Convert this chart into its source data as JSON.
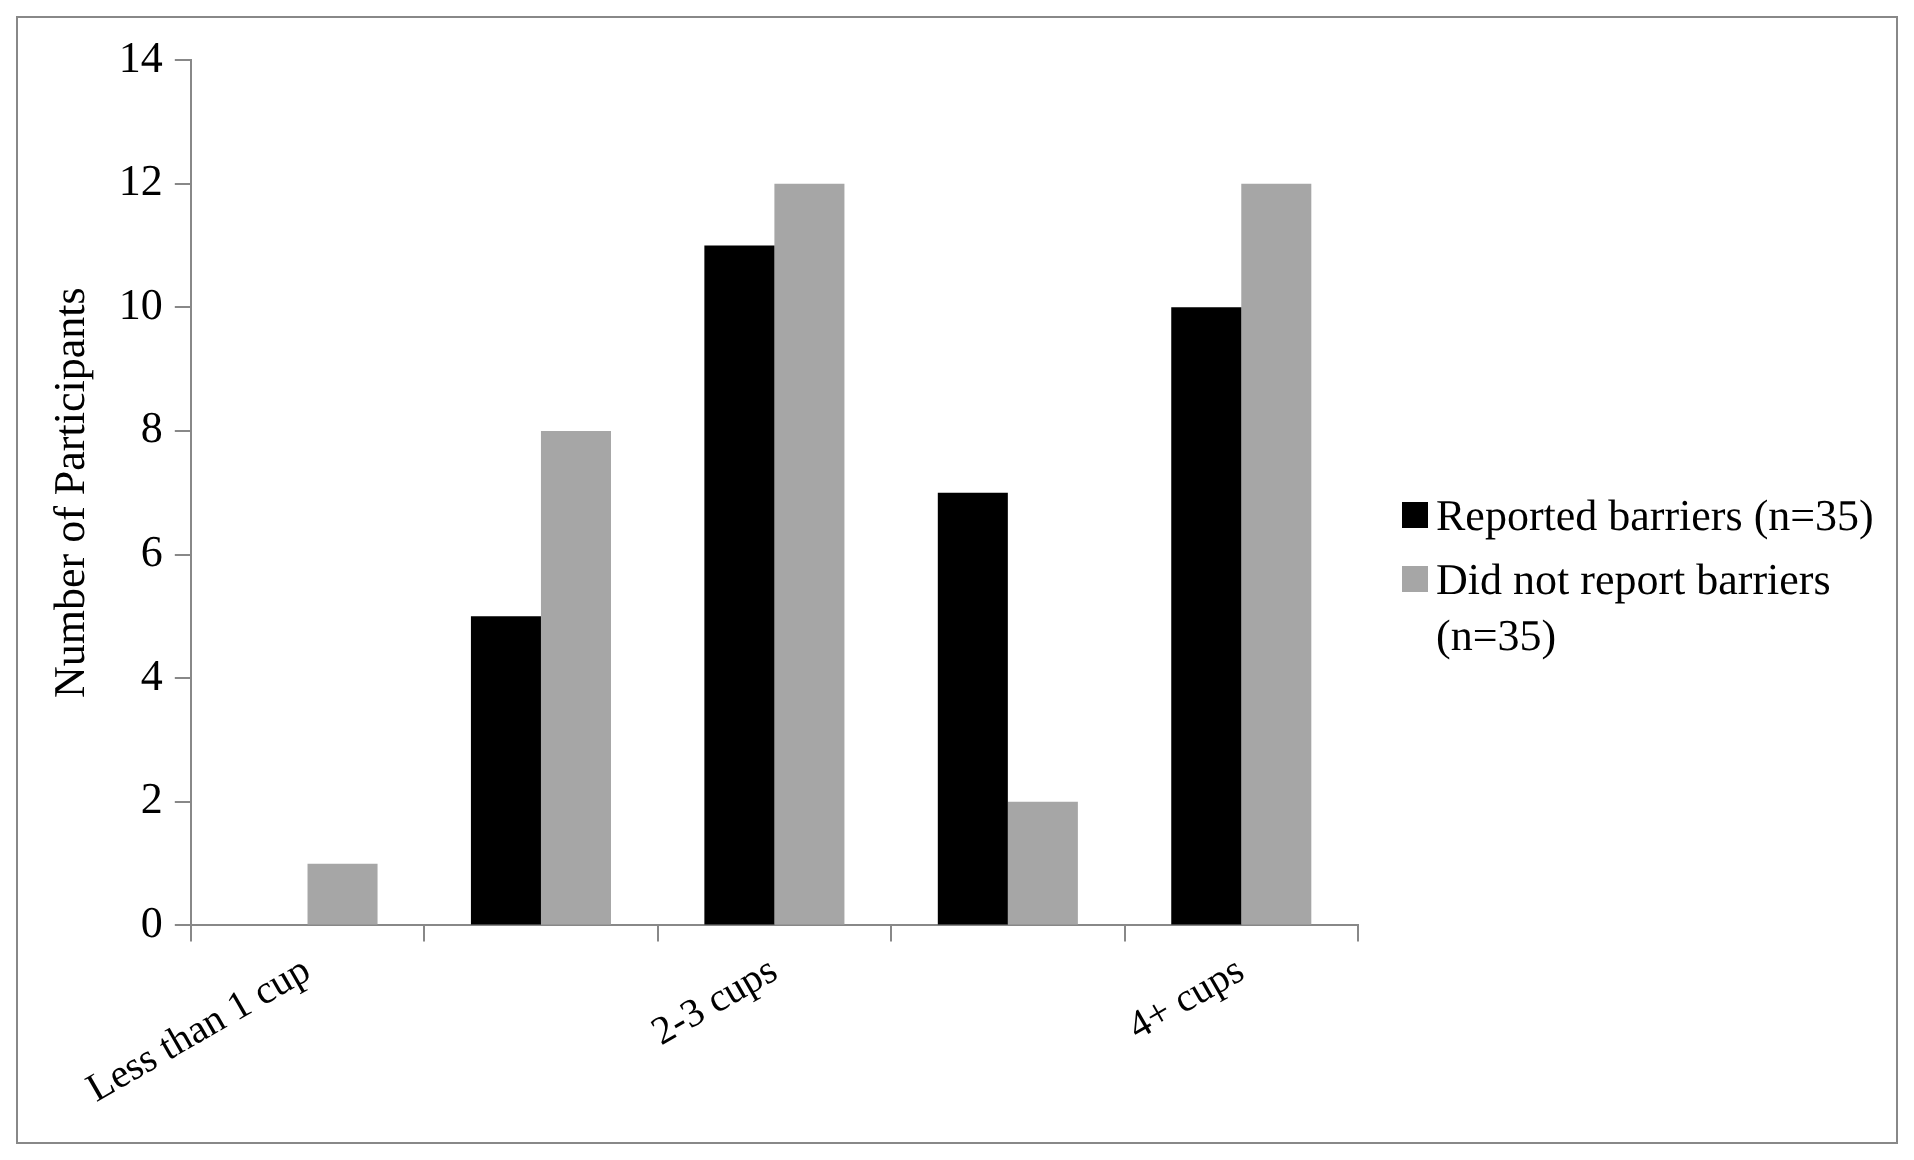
{
  "chart_data": {
    "type": "bar",
    "ylabel": "Number of Participants",
    "categories": [
      "Less than 1 cup",
      null,
      "2-3 cups",
      null,
      "4+ cups"
    ],
    "series": [
      {
        "name": "Reported barriers (n=35)",
        "color": "#000000",
        "values": [
          0,
          5,
          11,
          7,
          10
        ]
      },
      {
        "name": "Did not report barriers (n=35)",
        "color": "#a6a6a6",
        "values": [
          1,
          8,
          12,
          2,
          12
        ]
      }
    ],
    "ylim": [
      0,
      14
    ],
    "yticks": [
      0,
      2,
      4,
      6,
      8,
      10,
      12,
      14
    ],
    "grid": false,
    "legend": "right"
  }
}
